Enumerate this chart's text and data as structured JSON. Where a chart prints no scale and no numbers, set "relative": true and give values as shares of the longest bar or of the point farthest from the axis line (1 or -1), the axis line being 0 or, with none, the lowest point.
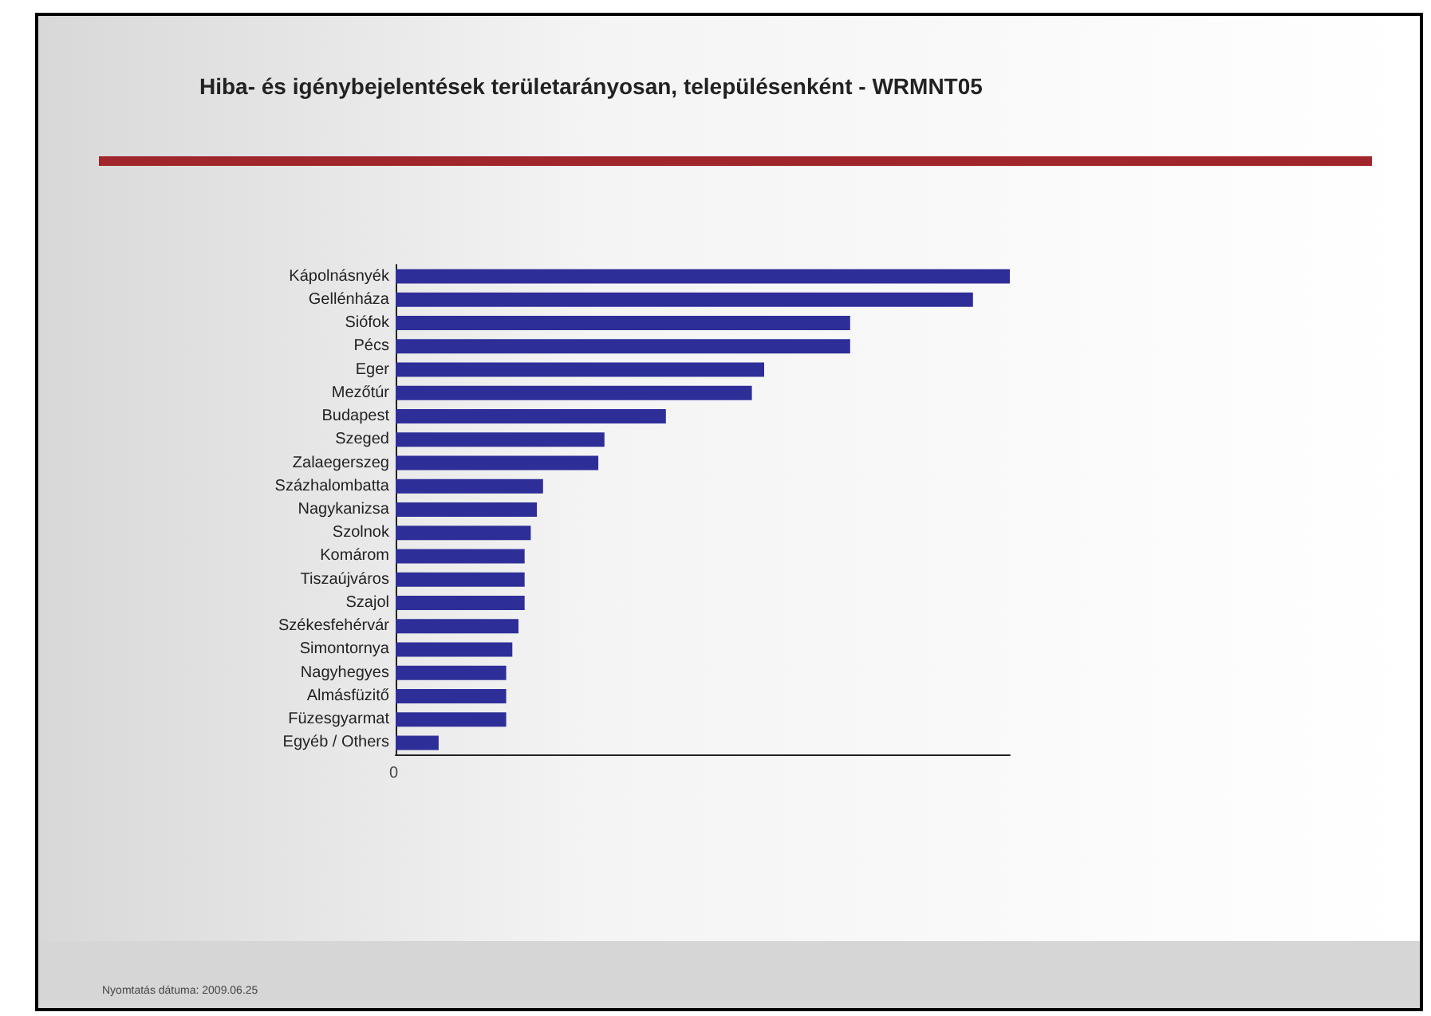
{
  "chart_data": {
    "type": "bar",
    "orientation": "horizontal",
    "relative": true,
    "title": "Hiba- és igénybejelentések területarányosan, településenként - WRMNT05",
    "categories": [
      "Kápolnásnyék",
      "Gellénháza",
      "Siófok",
      "Pécs",
      "Eger",
      "Mezőtúr",
      "Budapest",
      "Szeged",
      "Zalaegerszeg",
      "Százhalombatta",
      "Nagykanizsa",
      "Szolnok",
      "Komárom",
      "Tiszaújváros",
      "Szajol",
      "Székesfehérvár",
      "Simontornya",
      "Nagyhegyes",
      "Almásfüzitő",
      "Füzesgyarmat",
      "Egyéb / Others"
    ],
    "values": [
      1,
      0.94,
      0.74,
      0.74,
      0.6,
      0.58,
      0.44,
      0.34,
      0.33,
      0.24,
      0.23,
      0.22,
      0.21,
      0.21,
      0.21,
      0.2,
      0.19,
      0.18,
      0.18,
      0.18,
      0.07
    ],
    "color": "#2e2e99",
    "annotations": [
      "0",
      "Nyomtatás dátuma: 2009.06.25"
    ]
  }
}
